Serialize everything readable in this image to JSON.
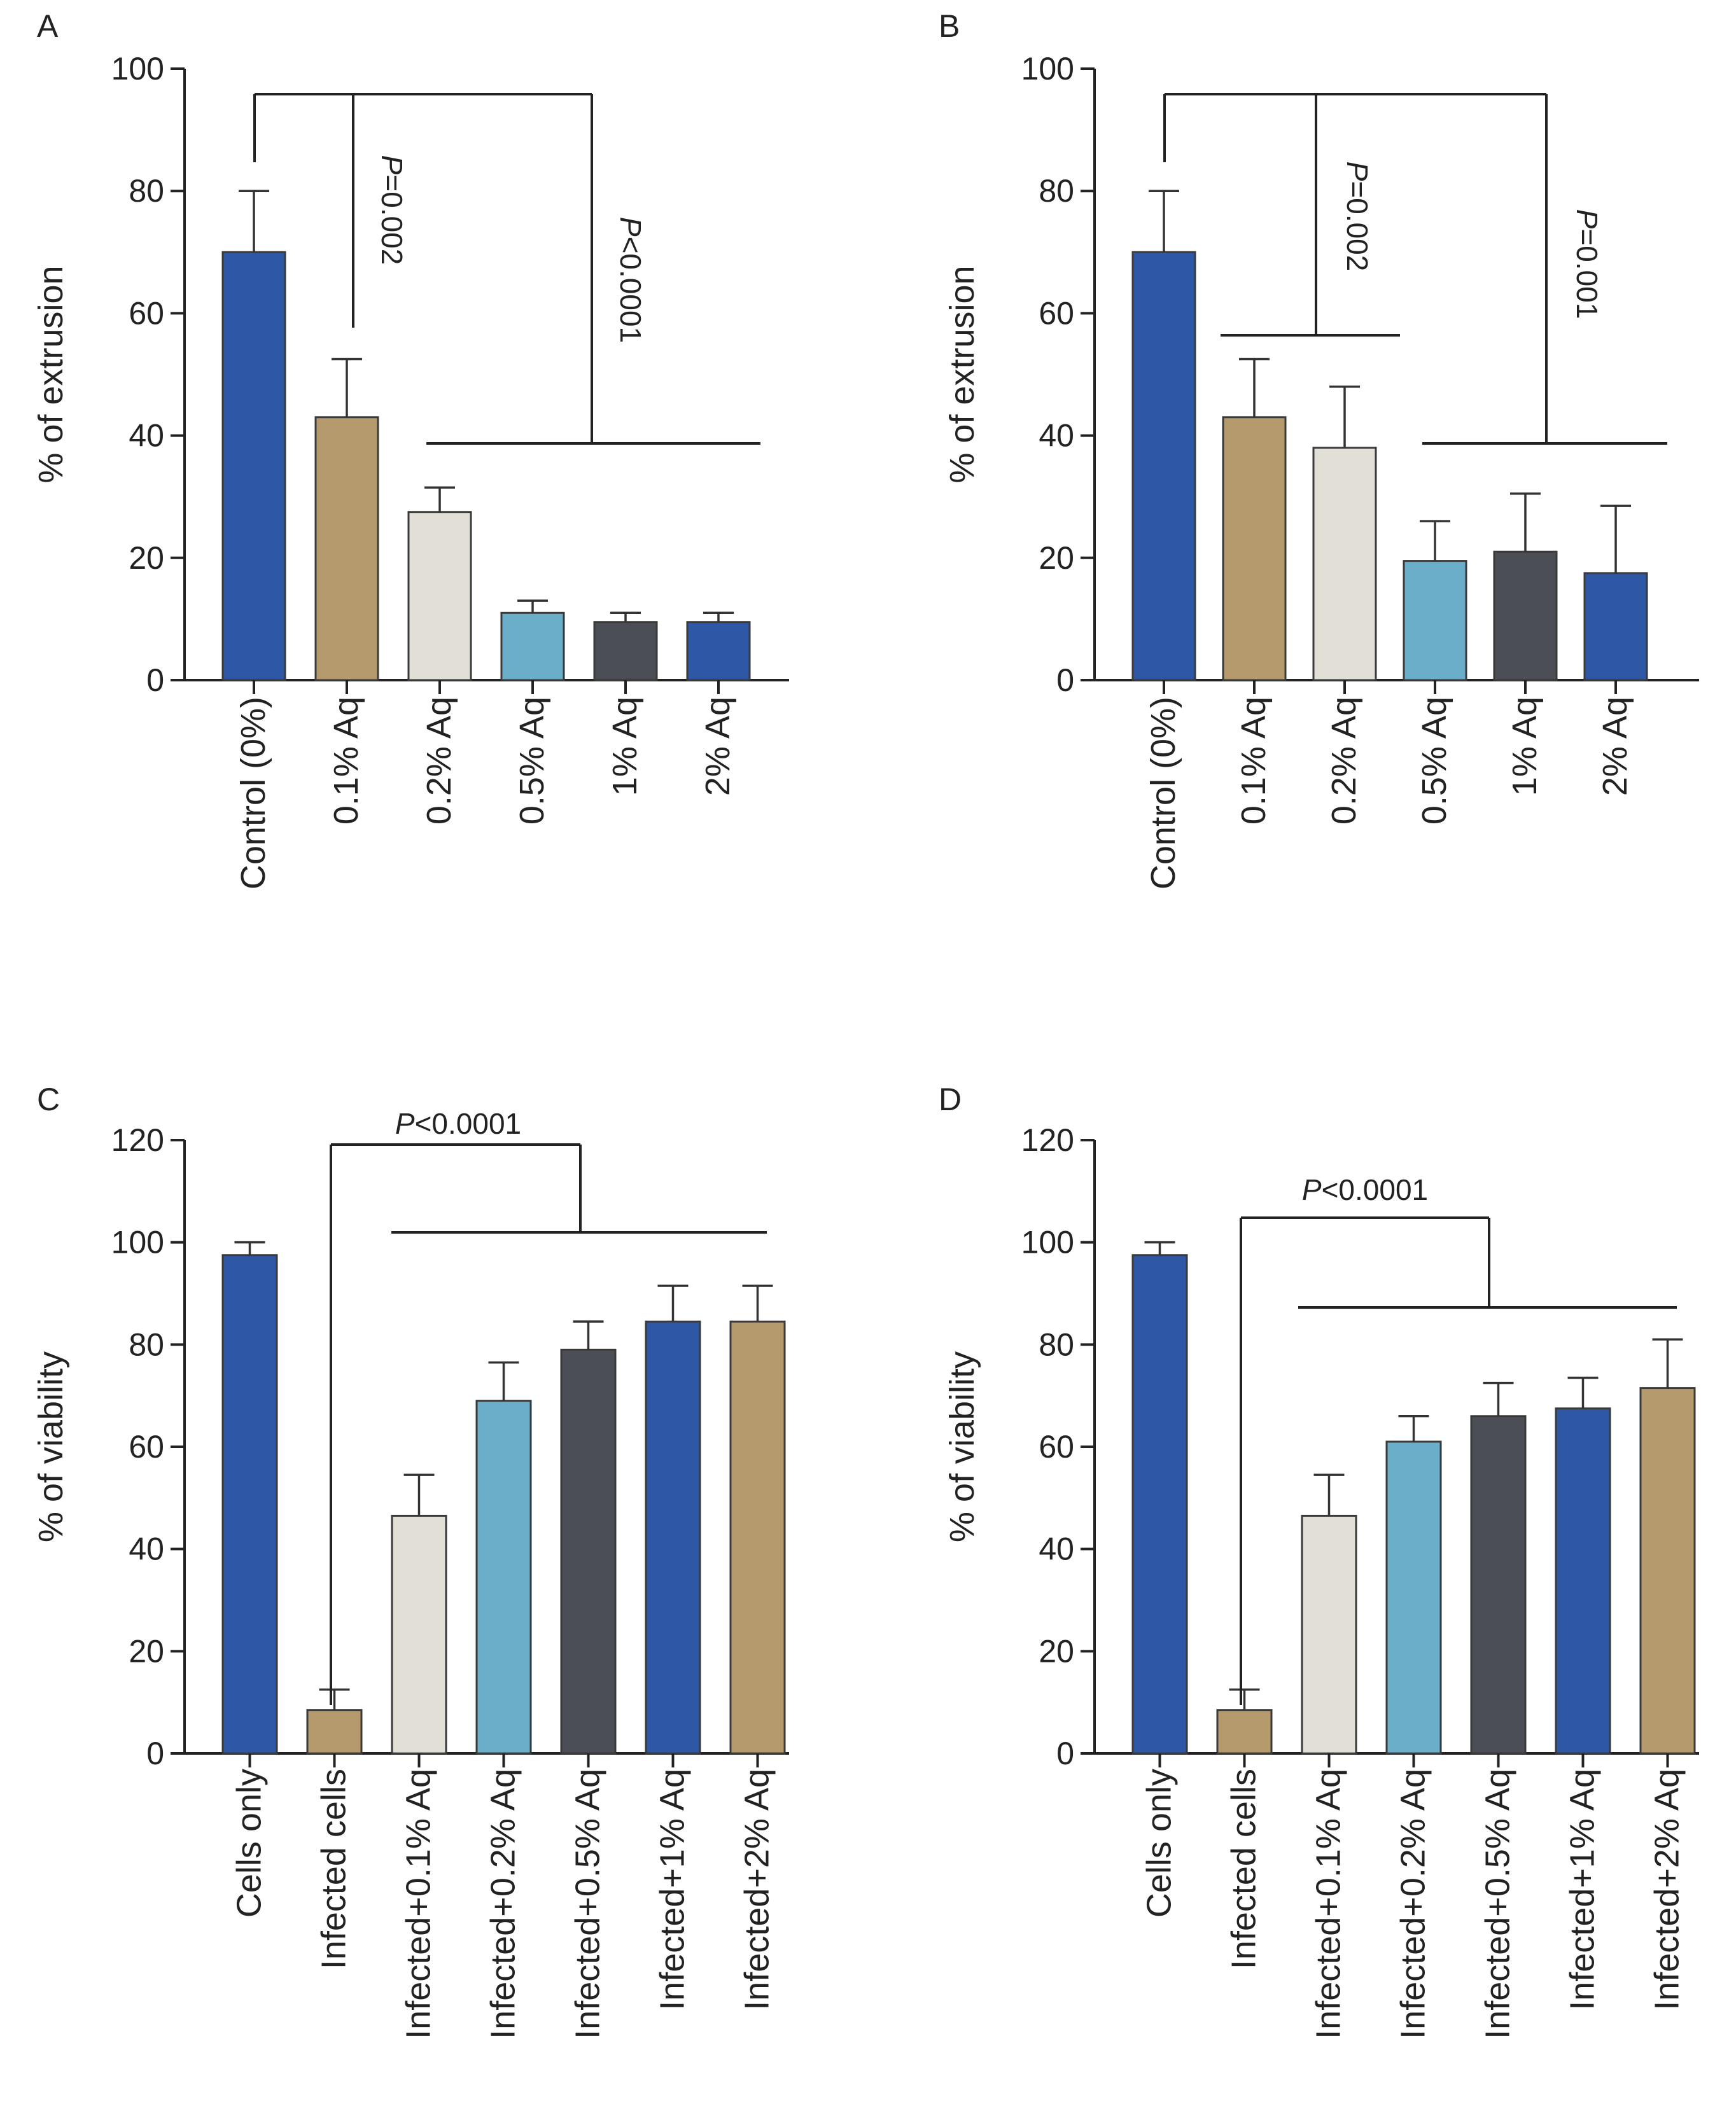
{
  "colors": {
    "dark_blue": "#2e58a5",
    "tan": "#b49a6c",
    "beige": "#e2dfd6",
    "light_blue": "#6aaec9",
    "charcoal": "#4b4f55",
    "axis": "#222222",
    "error_bar": "#333333"
  },
  "chart_data": [
    {
      "panel": "A",
      "type": "bar",
      "ylabel": "% of extrusion",
      "ylim": [
        0,
        100
      ],
      "yticks": [
        0,
        20,
        40,
        60,
        80,
        100
      ],
      "categories": [
        "Control (0%)",
        "0.1% Aq",
        "0.2% Aq",
        "0.5% Aq",
        "1% Aq",
        "2% Aq"
      ],
      "values": [
        70,
        43,
        27.5,
        11,
        9.5,
        9.5
      ],
      "errors": [
        10,
        9.5,
        4,
        2,
        1.5,
        1.5
      ],
      "bar_colors": [
        "#2e58a5",
        "#b49a6c",
        "#e2dfd6",
        "#6aaec9",
        "#4b4f55",
        "#2e58a5"
      ],
      "annotations": [
        {
          "italic": "P",
          "text": "=0.002"
        },
        {
          "italic": "P",
          "text": "<0.0001"
        }
      ]
    },
    {
      "panel": "B",
      "type": "bar",
      "ylabel": "% of extrusion",
      "ylim": [
        0,
        100
      ],
      "yticks": [
        0,
        20,
        40,
        60,
        80,
        100
      ],
      "categories": [
        "Control (0%)",
        "0.1% Aq",
        "0.2% Aq",
        "0.5% Aq",
        "1% Aq",
        "2% Aq"
      ],
      "values": [
        70,
        43,
        38,
        19.5,
        21,
        17.5
      ],
      "errors": [
        10,
        9.5,
        10,
        6.5,
        9.5,
        11
      ],
      "bar_colors": [
        "#2e58a5",
        "#b49a6c",
        "#e2dfd6",
        "#6aaec9",
        "#4b4f55",
        "#2e58a5"
      ],
      "annotations": [
        {
          "italic": "P",
          "text": "=0.002"
        },
        {
          "italic": "P",
          "text": "=0.001"
        }
      ]
    },
    {
      "panel": "C",
      "type": "bar",
      "ylabel": "% of viability",
      "ylim": [
        0,
        120
      ],
      "yticks": [
        0,
        20,
        40,
        60,
        80,
        100,
        120
      ],
      "categories": [
        "Cells only",
        "Infected cells",
        "Infected+0.1% Aq",
        "Infected+0.2% Aq",
        "Infected+0.5% Aq",
        "Infected+1% Aq",
        "Infected+2% Aq"
      ],
      "values": [
        97.5,
        8.5,
        46.5,
        69,
        79,
        84.5,
        84.5
      ],
      "errors": [
        2.5,
        4,
        8,
        7.5,
        5.5,
        7,
        7
      ],
      "bar_colors": [
        "#2e58a5",
        "#b49a6c",
        "#e2dfd6",
        "#6aaec9",
        "#4b4f55",
        "#2e58a5",
        "#b49a6c"
      ],
      "annotations": [
        {
          "italic": "P",
          "text": "<0.0001"
        }
      ]
    },
    {
      "panel": "D",
      "type": "bar",
      "ylabel": "% of viability",
      "ylim": [
        0,
        120
      ],
      "yticks": [
        0,
        20,
        40,
        60,
        80,
        100,
        120
      ],
      "categories": [
        "Cells only",
        "Infected cells",
        "Infected+0.1% Aq",
        "Infected+0.2% Aq",
        "Infected+0.5% Aq",
        "Infected+1% Aq",
        "Infected+2% Aq"
      ],
      "values": [
        97.5,
        8.5,
        46.5,
        61,
        66,
        67.5,
        71.5
      ],
      "errors": [
        2.5,
        4,
        8,
        5,
        6.5,
        6,
        9.5
      ],
      "bar_colors": [
        "#2e58a5",
        "#b49a6c",
        "#e2dfd6",
        "#6aaec9",
        "#4b4f55",
        "#2e58a5",
        "#b49a6c"
      ],
      "annotations": [
        {
          "italic": "P",
          "text": "<0.0001"
        }
      ]
    }
  ]
}
